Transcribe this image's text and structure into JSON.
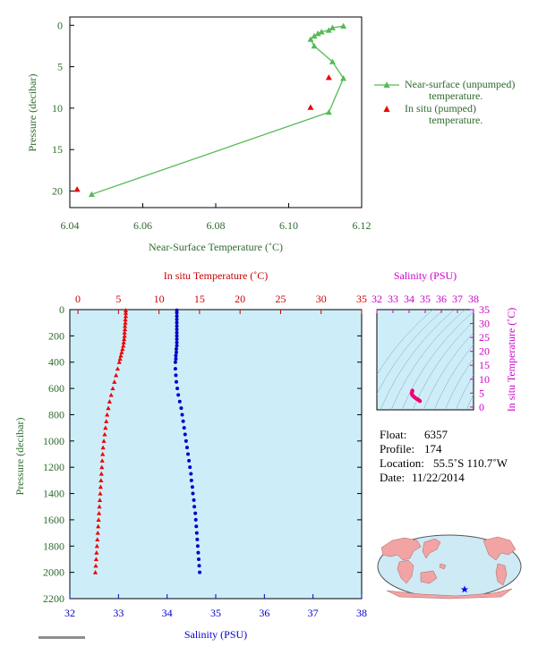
{
  "chart_data": [
    {
      "type": "line",
      "xlabel": "Near-Surface Temperature (˚C)",
      "ylabel": "Pressure (decibar)",
      "xlim": [
        6.04,
        6.12
      ],
      "ylim": [
        22,
        -1
      ],
      "xticks": [
        "6.04",
        "6.06",
        "6.08",
        "6.10",
        "6.12"
      ],
      "yticks": [
        "0",
        "5",
        "10",
        "15",
        "20"
      ],
      "legend_placement": "right",
      "series": [
        {
          "name": "Near-surface (unpumped) temperature.",
          "marker": "triangle",
          "color": "#55bb55",
          "points": [
            [
              6.115,
              0.1
            ],
            [
              6.112,
              0.3
            ],
            [
              6.111,
              0.6
            ],
            [
              6.109,
              0.8
            ],
            [
              6.108,
              1.0
            ],
            [
              6.107,
              1.3
            ],
            [
              6.106,
              1.7
            ],
            [
              6.107,
              2.5
            ],
            [
              6.112,
              4.4
            ],
            [
              6.115,
              6.4
            ],
            [
              6.111,
              10.5
            ],
            [
              6.046,
              20.4
            ]
          ]
        },
        {
          "name": "In situ (pumped) temperature.",
          "marker": "triangle",
          "color": "#ee0000",
          "points": [
            [
              6.111,
              6.3
            ],
            [
              6.106,
              9.9
            ],
            [
              6.042,
              19.8
            ]
          ]
        }
      ]
    },
    {
      "type": "scatter",
      "ylabel": "Pressure (decibar)",
      "yticks": [
        "0",
        "200",
        "400",
        "600",
        "800",
        "1000",
        "1200",
        "1400",
        "1600",
        "1800",
        "2000",
        "2200"
      ],
      "ylim": [
        2200,
        0
      ],
      "x_top": {
        "label": "In situ Temperature (˚C)",
        "ticks": [
          "0",
          "5",
          "10",
          "15",
          "20",
          "25",
          "30",
          "35"
        ],
        "lim": [
          -1,
          35
        ]
      },
      "x_bottom": {
        "label": "Salinity (PSU)",
        "ticks": [
          "32",
          "33",
          "34",
          "35",
          "36",
          "37",
          "38"
        ],
        "lim": [
          32,
          38
        ]
      },
      "series": [
        {
          "name": "In situ Temperature",
          "color": "#ee0000",
          "marker": "triangle",
          "pressure": [
            5,
            25,
            50,
            75,
            100,
            125,
            150,
            175,
            200,
            225,
            250,
            275,
            300,
            325,
            350,
            375,
            400,
            450,
            500,
            550,
            600,
            650,
            700,
            750,
            800,
            850,
            900,
            950,
            1000,
            1050,
            1100,
            1150,
            1200,
            1250,
            1300,
            1350,
            1400,
            1450,
            1500,
            1550,
            1600,
            1650,
            1700,
            1750,
            1800,
            1850,
            1900,
            1950,
            2000
          ],
          "values": [
            5.9,
            5.9,
            5.9,
            5.85,
            5.85,
            5.8,
            5.8,
            5.75,
            5.75,
            5.7,
            5.65,
            5.6,
            5.5,
            5.4,
            5.3,
            5.2,
            5.1,
            4.9,
            4.7,
            4.5,
            4.3,
            4.1,
            3.9,
            3.75,
            3.6,
            3.5,
            3.4,
            3.3,
            3.2,
            3.1,
            3.05,
            3.0,
            2.95,
            2.9,
            2.85,
            2.8,
            2.75,
            2.7,
            2.65,
            2.6,
            2.55,
            2.5,
            2.45,
            2.4,
            2.35,
            2.3,
            2.25,
            2.2,
            2.15
          ]
        },
        {
          "name": "Salinity",
          "color": "#0000cc",
          "marker": "circle",
          "pressure": [
            5,
            25,
            50,
            75,
            100,
            125,
            150,
            175,
            200,
            225,
            250,
            275,
            300,
            325,
            350,
            375,
            400,
            450,
            500,
            550,
            600,
            650,
            700,
            750,
            800,
            850,
            900,
            950,
            1000,
            1050,
            1100,
            1150,
            1200,
            1250,
            1300,
            1350,
            1400,
            1450,
            1500,
            1550,
            1600,
            1650,
            1700,
            1750,
            1800,
            1850,
            1900,
            1950,
            2000
          ],
          "values": [
            34.2,
            34.2,
            34.2,
            34.2,
            34.2,
            34.2,
            34.2,
            34.2,
            34.2,
            34.2,
            34.2,
            34.2,
            34.19,
            34.19,
            34.18,
            34.18,
            34.17,
            34.17,
            34.18,
            34.19,
            34.21,
            34.23,
            34.26,
            34.29,
            34.31,
            34.33,
            34.35,
            34.37,
            34.39,
            34.41,
            34.43,
            34.45,
            34.47,
            34.49,
            34.5,
            34.52,
            34.53,
            34.55,
            34.56,
            34.58,
            34.59,
            34.6,
            34.61,
            34.62,
            34.63,
            34.64,
            34.65,
            34.66,
            34.67
          ]
        }
      ]
    },
    {
      "type": "scatter",
      "x_top": {
        "label": "Salinity (PSU)",
        "ticks": [
          "32",
          "33",
          "34",
          "35",
          "36",
          "37",
          "38"
        ],
        "lim": [
          32,
          38
        ]
      },
      "y_right": {
        "label": "In situ Temperature (˚C)",
        "ticks": [
          "0",
          "5",
          "10",
          "15",
          "20",
          "25",
          "30",
          "35"
        ],
        "lim": [
          -1,
          35
        ]
      },
      "grid": "density contours",
      "series": [
        {
          "name": "T-S",
          "color": "#ee0077",
          "points": [
            [
              34.2,
              5.9
            ],
            [
              34.2,
              5.8
            ],
            [
              34.18,
              5.3
            ],
            [
              34.17,
              4.7
            ],
            [
              34.2,
              4.3
            ],
            [
              34.28,
              3.8
            ],
            [
              34.36,
              3.4
            ],
            [
              34.44,
              3.05
            ],
            [
              34.52,
              2.8
            ],
            [
              34.6,
              2.5
            ],
            [
              34.67,
              2.15
            ]
          ]
        }
      ]
    }
  ],
  "info": {
    "float_label": "Float:",
    "float_value": "6357",
    "profile_label": "Profile:",
    "profile_value": "174",
    "location_label": "Location:",
    "location_value": "55.5˚S  110.7˚W",
    "date_label": "Date:",
    "date_value": "11/22/2014"
  },
  "map": {
    "marker_color": "#0000ff",
    "land_color": "#f2a3a3",
    "ocean_color": "#cdeaf5"
  },
  "colors": {
    "plot_background": "#cdeef8",
    "axis_green": "#2e6b2e",
    "red": "#cc0000",
    "magenta": "#cc00cc",
    "blue": "#0000cc"
  }
}
